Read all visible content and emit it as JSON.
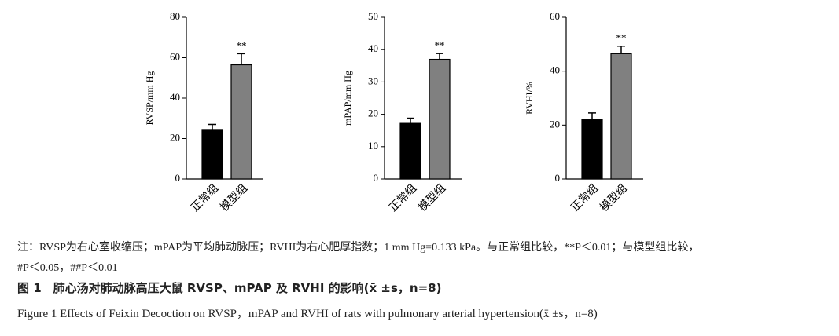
{
  "chart_data": [
    {
      "type": "bar",
      "y_label": "RVSP/mm Hg",
      "categories": [
        "正常组",
        "模型组"
      ],
      "values": [
        24.5,
        56.5
      ],
      "errors": [
        2.5,
        5.5
      ],
      "bar_labels": [
        null,
        "**"
      ],
      "colors": [
        "#000000",
        "#808080"
      ],
      "ylim": [
        0,
        80
      ],
      "yticks": [
        0,
        20,
        40,
        60,
        80
      ]
    },
    {
      "type": "bar",
      "y_label": "mPAP/mm Hg",
      "categories": [
        "正常组",
        "模型组"
      ],
      "values": [
        17.2,
        37
      ],
      "errors": [
        1.6,
        1.8
      ],
      "bar_labels": [
        null,
        "**"
      ],
      "colors": [
        "#000000",
        "#808080"
      ],
      "ylim": [
        0,
        50
      ],
      "yticks": [
        0,
        10,
        20,
        30,
        40,
        50
      ]
    },
    {
      "type": "bar",
      "y_label": "RVHI/%",
      "categories": [
        "正常组",
        "模型组"
      ],
      "values": [
        22,
        46.5
      ],
      "errors": [
        2.5,
        2.8
      ],
      "bar_labels": [
        null,
        "**"
      ],
      "colors": [
        "#000000",
        "#808080"
      ],
      "ylim": [
        0,
        60
      ],
      "yticks": [
        0,
        20,
        40,
        60
      ]
    }
  ],
  "notes": [
    "注：RVSP为右心室收缩压；mPAP为平均肺动脉压；RVHI为右心肥厚指数；1 mm Hg=0.133 kPa。与正常组比较，**P＜0.01；与模型组比较，",
    "#P＜0.05，##P＜0.01"
  ],
  "caption_cn": "图 1　肺心汤对肺动脉高压大鼠 RVSP、mPAP 及 RVHI 的影响(x̄ ±s，n=8)",
  "caption_en": "Figure 1  Effects of Feixin Decoction on RVSP，mPAP and RVHI of rats with pulmonary arterial hypertension(x̄ ±s，n=8)"
}
